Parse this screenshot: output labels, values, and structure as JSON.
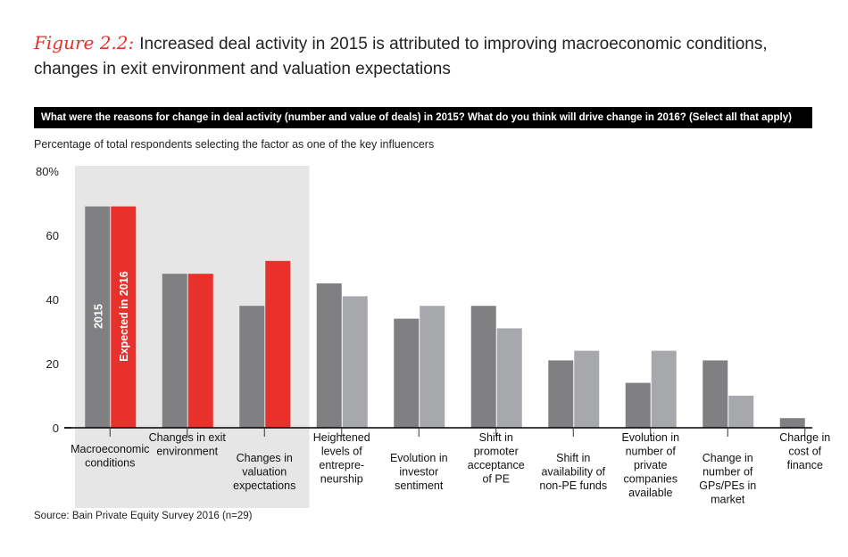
{
  "figure": {
    "label": "Figure 2.2:",
    "title": "Increased deal activity in 2015 is attributed to improving macroeconomic conditions, changes in exit environment and valuation expectations"
  },
  "question": "What were the reasons for change in deal activity (number and value of deals) in 2015? What do you think will drive change in 2016? (Select all that apply)",
  "subtitle": "Percentage of total respondents selecting the factor as one of the key influencers",
  "source": "Source: Bain Private Equity Survey 2016 (n=29)",
  "colors": {
    "series_2015": "#808083",
    "series_2016_highlight": "#e8312a",
    "series_2016_other": "#a7a8ab",
    "highlight_bg": "#e6e6e6"
  },
  "chart_data": {
    "type": "bar",
    "categories": [
      [
        "Macroeconomic",
        "conditions"
      ],
      [
        "Changes in exit",
        "environment"
      ],
      [
        "Changes in",
        "valuation",
        "expectations"
      ],
      [
        "Heightened",
        "levels of",
        "entrepre-",
        "neurship"
      ],
      [
        "Evolution in",
        "investor",
        "sentiment"
      ],
      [
        "Shift in",
        "promoter",
        "acceptance",
        "of PE"
      ],
      [
        "Shift in",
        "availability of",
        "non-PE funds"
      ],
      [
        "Evolution in",
        "number of",
        "private",
        "companies",
        "available"
      ],
      [
        "Change in",
        "number of",
        "GPs/PEs in",
        "market"
      ],
      [
        "Change in",
        "cost of",
        "finance"
      ]
    ],
    "series": [
      {
        "name": "2015",
        "values": [
          69,
          48,
          38,
          45,
          34,
          38,
          21,
          14,
          21,
          3
        ]
      },
      {
        "name": "Expected in 2016",
        "values": [
          69,
          48,
          52,
          41,
          38,
          31,
          24,
          24,
          10,
          0
        ]
      }
    ],
    "highlighted_categories": 3,
    "y_ticks": [
      "0",
      "20",
      "40",
      "60",
      "80%"
    ],
    "y_tick_values": [
      0,
      20,
      40,
      60,
      80
    ],
    "ylim": [
      0,
      80
    ]
  }
}
